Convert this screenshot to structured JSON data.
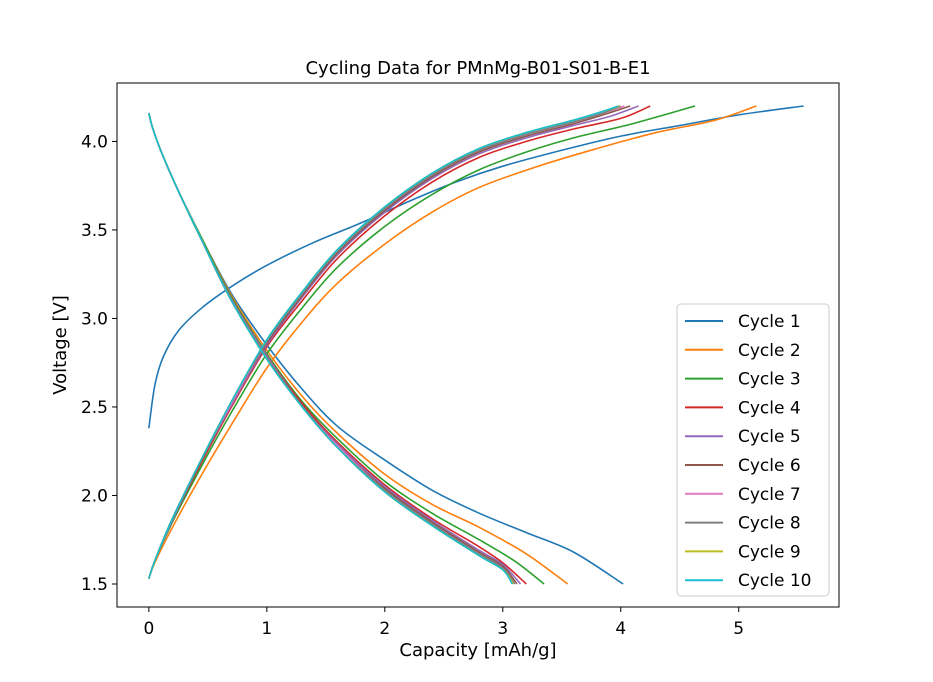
{
  "chart_data": {
    "type": "line",
    "title": "Cycling Data for PMnMg-B01-S01-B-E1",
    "xlabel": "Capacity [mAh/g]",
    "ylabel": "Voltage [V]",
    "xlim": [
      -0.27,
      5.85
    ],
    "ylim": [
      1.37,
      4.33
    ],
    "xticks": [
      0,
      1,
      2,
      3,
      4,
      5
    ],
    "yticks": [
      1.5,
      2.0,
      2.5,
      3.0,
      3.5,
      4.0
    ],
    "xtick_labels": [
      "0",
      "1",
      "2",
      "3",
      "4",
      "5"
    ],
    "ytick_labels": [
      "1.5",
      "2.0",
      "2.5",
      "3.0",
      "3.5",
      "4.0"
    ],
    "grid": false,
    "legend_position": "lower right",
    "series": [
      {
        "name": "Cycle 1",
        "color": "#1f77b4",
        "charge": [
          [
            0.0,
            2.38
          ],
          [
            0.05,
            2.62
          ],
          [
            0.12,
            2.78
          ],
          [
            0.25,
            2.93
          ],
          [
            0.45,
            3.06
          ],
          [
            0.7,
            3.18
          ],
          [
            1.0,
            3.3
          ],
          [
            1.4,
            3.43
          ],
          [
            1.8,
            3.54
          ],
          [
            2.2,
            3.66
          ],
          [
            2.6,
            3.77
          ],
          [
            3.0,
            3.86
          ],
          [
            3.5,
            3.95
          ],
          [
            4.0,
            4.03
          ],
          [
            4.5,
            4.09
          ],
          [
            5.0,
            4.15
          ],
          [
            5.55,
            4.2
          ]
        ],
        "discharge": [
          [
            0.0,
            4.16
          ],
          [
            0.03,
            4.08
          ],
          [
            0.1,
            3.95
          ],
          [
            0.25,
            3.72
          ],
          [
            0.45,
            3.45
          ],
          [
            0.7,
            3.14
          ],
          [
            1.0,
            2.85
          ],
          [
            1.3,
            2.6
          ],
          [
            1.6,
            2.39
          ],
          [
            2.0,
            2.2
          ],
          [
            2.4,
            2.03
          ],
          [
            2.8,
            1.9
          ],
          [
            3.2,
            1.79
          ],
          [
            3.6,
            1.68
          ],
          [
            4.02,
            1.5
          ]
        ]
      },
      {
        "name": "Cycle 2",
        "color": "#ff7f0e",
        "charge": [
          [
            0.0,
            1.53
          ],
          [
            0.05,
            1.62
          ],
          [
            0.2,
            1.82
          ],
          [
            0.45,
            2.12
          ],
          [
            0.7,
            2.4
          ],
          [
            1.0,
            2.72
          ],
          [
            1.3,
            2.98
          ],
          [
            1.6,
            3.2
          ],
          [
            2.0,
            3.42
          ],
          [
            2.4,
            3.6
          ],
          [
            2.8,
            3.74
          ],
          [
            3.3,
            3.86
          ],
          [
            3.8,
            3.96
          ],
          [
            4.3,
            4.05
          ],
          [
            4.8,
            4.12
          ],
          [
            5.15,
            4.2
          ]
        ],
        "discharge": [
          [
            0.0,
            4.16
          ],
          [
            0.03,
            4.08
          ],
          [
            0.1,
            3.95
          ],
          [
            0.25,
            3.72
          ],
          [
            0.45,
            3.45
          ],
          [
            0.7,
            3.13
          ],
          [
            1.0,
            2.82
          ],
          [
            1.3,
            2.56
          ],
          [
            1.6,
            2.35
          ],
          [
            2.0,
            2.12
          ],
          [
            2.4,
            1.95
          ],
          [
            2.8,
            1.82
          ],
          [
            3.2,
            1.67
          ],
          [
            3.55,
            1.5
          ]
        ]
      },
      {
        "name": "Cycle 3",
        "color": "#2ca02c",
        "charge": [
          [
            0.0,
            1.53
          ],
          [
            0.05,
            1.63
          ],
          [
            0.2,
            1.85
          ],
          [
            0.45,
            2.17
          ],
          [
            0.7,
            2.47
          ],
          [
            1.0,
            2.8
          ],
          [
            1.3,
            3.06
          ],
          [
            1.6,
            3.29
          ],
          [
            2.0,
            3.52
          ],
          [
            2.4,
            3.7
          ],
          [
            2.8,
            3.84
          ],
          [
            3.2,
            3.94
          ],
          [
            3.6,
            4.02
          ],
          [
            4.1,
            4.1
          ],
          [
            4.63,
            4.2
          ]
        ],
        "discharge": [
          [
            0.0,
            4.16
          ],
          [
            0.03,
            4.08
          ],
          [
            0.1,
            3.95
          ],
          [
            0.25,
            3.72
          ],
          [
            0.45,
            3.45
          ],
          [
            0.7,
            3.12
          ],
          [
            1.0,
            2.8
          ],
          [
            1.3,
            2.53
          ],
          [
            1.6,
            2.32
          ],
          [
            2.0,
            2.08
          ],
          [
            2.4,
            1.9
          ],
          [
            2.8,
            1.75
          ],
          [
            3.1,
            1.63
          ],
          [
            3.35,
            1.5
          ]
        ]
      },
      {
        "name": "Cycle 4",
        "color": "#d62728",
        "charge": [
          [
            0.0,
            1.53
          ],
          [
            0.05,
            1.63
          ],
          [
            0.2,
            1.86
          ],
          [
            0.45,
            2.19
          ],
          [
            0.7,
            2.5
          ],
          [
            1.0,
            2.84
          ],
          [
            1.3,
            3.1
          ],
          [
            1.6,
            3.34
          ],
          [
            2.0,
            3.58
          ],
          [
            2.4,
            3.77
          ],
          [
            2.8,
            3.91
          ],
          [
            3.2,
            4.0
          ],
          [
            3.6,
            4.07
          ],
          [
            4.0,
            4.13
          ],
          [
            4.25,
            4.2
          ]
        ],
        "discharge": [
          [
            0.0,
            4.16
          ],
          [
            0.03,
            4.08
          ],
          [
            0.1,
            3.95
          ],
          [
            0.25,
            3.72
          ],
          [
            0.45,
            3.44
          ],
          [
            0.7,
            3.11
          ],
          [
            1.0,
            2.79
          ],
          [
            1.3,
            2.52
          ],
          [
            1.6,
            2.3
          ],
          [
            2.0,
            2.06
          ],
          [
            2.4,
            1.87
          ],
          [
            2.8,
            1.71
          ],
          [
            3.0,
            1.62
          ],
          [
            3.2,
            1.5
          ]
        ]
      },
      {
        "name": "Cycle 5",
        "color": "#9467bd",
        "charge": [
          [
            0.0,
            1.53
          ],
          [
            0.05,
            1.63
          ],
          [
            0.2,
            1.86
          ],
          [
            0.45,
            2.2
          ],
          [
            0.7,
            2.51
          ],
          [
            1.0,
            2.85
          ],
          [
            1.3,
            3.12
          ],
          [
            1.6,
            3.36
          ],
          [
            2.0,
            3.6
          ],
          [
            2.4,
            3.79
          ],
          [
            2.8,
            3.93
          ],
          [
            3.2,
            4.02
          ],
          [
            3.6,
            4.09
          ],
          [
            3.9,
            4.14
          ],
          [
            4.15,
            4.2
          ]
        ],
        "discharge": [
          [
            0.0,
            4.16
          ],
          [
            0.03,
            4.08
          ],
          [
            0.1,
            3.95
          ],
          [
            0.25,
            3.72
          ],
          [
            0.45,
            3.44
          ],
          [
            0.7,
            3.11
          ],
          [
            1.0,
            2.79
          ],
          [
            1.3,
            2.51
          ],
          [
            1.6,
            2.29
          ],
          [
            2.0,
            2.05
          ],
          [
            2.4,
            1.86
          ],
          [
            2.8,
            1.69
          ],
          [
            3.0,
            1.61
          ],
          [
            3.15,
            1.5
          ]
        ]
      },
      {
        "name": "Cycle 6",
        "color": "#8c564b",
        "charge": [
          [
            0.0,
            1.53
          ],
          [
            0.05,
            1.63
          ],
          [
            0.2,
            1.87
          ],
          [
            0.45,
            2.2
          ],
          [
            0.7,
            2.52
          ],
          [
            1.0,
            2.86
          ],
          [
            1.3,
            3.13
          ],
          [
            1.6,
            3.37
          ],
          [
            2.0,
            3.61
          ],
          [
            2.4,
            3.8
          ],
          [
            2.8,
            3.94
          ],
          [
            3.2,
            4.03
          ],
          [
            3.6,
            4.1
          ],
          [
            3.85,
            4.15
          ],
          [
            4.08,
            4.2
          ]
        ],
        "discharge": [
          [
            0.0,
            4.16
          ],
          [
            0.03,
            4.08
          ],
          [
            0.1,
            3.95
          ],
          [
            0.25,
            3.72
          ],
          [
            0.45,
            3.44
          ],
          [
            0.7,
            3.1
          ],
          [
            1.0,
            2.78
          ],
          [
            1.3,
            2.51
          ],
          [
            1.6,
            2.28
          ],
          [
            2.0,
            2.04
          ],
          [
            2.4,
            1.85
          ],
          [
            2.8,
            1.68
          ],
          [
            3.0,
            1.6
          ],
          [
            3.12,
            1.5
          ]
        ]
      },
      {
        "name": "Cycle 7",
        "color": "#e377c2",
        "charge": [
          [
            0.0,
            1.53
          ],
          [
            0.05,
            1.63
          ],
          [
            0.2,
            1.87
          ],
          [
            0.45,
            2.21
          ],
          [
            0.7,
            2.52
          ],
          [
            1.0,
            2.87
          ],
          [
            1.3,
            3.14
          ],
          [
            1.6,
            3.38
          ],
          [
            2.0,
            3.62
          ],
          [
            2.4,
            3.81
          ],
          [
            2.8,
            3.95
          ],
          [
            3.2,
            4.04
          ],
          [
            3.6,
            4.11
          ],
          [
            3.85,
            4.16
          ],
          [
            4.03,
            4.2
          ]
        ],
        "discharge": [
          [
            0.0,
            4.16
          ],
          [
            0.03,
            4.08
          ],
          [
            0.1,
            3.95
          ],
          [
            0.25,
            3.72
          ],
          [
            0.45,
            3.44
          ],
          [
            0.7,
            3.1
          ],
          [
            1.0,
            2.78
          ],
          [
            1.3,
            2.5
          ],
          [
            1.6,
            2.28
          ],
          [
            2.0,
            2.03
          ],
          [
            2.4,
            1.84
          ],
          [
            2.8,
            1.67
          ],
          [
            3.0,
            1.59
          ],
          [
            3.1,
            1.5
          ]
        ]
      },
      {
        "name": "Cycle 8",
        "color": "#7f7f7f",
        "charge": [
          [
            0.0,
            1.53
          ],
          [
            0.05,
            1.63
          ],
          [
            0.2,
            1.87
          ],
          [
            0.45,
            2.21
          ],
          [
            0.7,
            2.53
          ],
          [
            1.0,
            2.87
          ],
          [
            1.3,
            3.14
          ],
          [
            1.6,
            3.38
          ],
          [
            2.0,
            3.62
          ],
          [
            2.4,
            3.81
          ],
          [
            2.8,
            3.95
          ],
          [
            3.2,
            4.04
          ],
          [
            3.6,
            4.11
          ],
          [
            3.85,
            4.16
          ],
          [
            4.0,
            4.2
          ]
        ],
        "discharge": [
          [
            0.0,
            4.16
          ],
          [
            0.03,
            4.08
          ],
          [
            0.1,
            3.95
          ],
          [
            0.25,
            3.72
          ],
          [
            0.45,
            3.44
          ],
          [
            0.7,
            3.1
          ],
          [
            1.0,
            2.78
          ],
          [
            1.3,
            2.5
          ],
          [
            1.6,
            2.27
          ],
          [
            2.0,
            2.03
          ],
          [
            2.4,
            1.84
          ],
          [
            2.8,
            1.67
          ],
          [
            3.0,
            1.59
          ],
          [
            3.1,
            1.5
          ]
        ]
      },
      {
        "name": "Cycle 9",
        "color": "#bcbd22",
        "charge": [
          [
            0.0,
            1.53
          ],
          [
            0.05,
            1.63
          ],
          [
            0.2,
            1.87
          ],
          [
            0.45,
            2.21
          ],
          [
            0.7,
            2.53
          ],
          [
            1.0,
            2.88
          ],
          [
            1.3,
            3.15
          ],
          [
            1.6,
            3.39
          ],
          [
            2.0,
            3.63
          ],
          [
            2.4,
            3.82
          ],
          [
            2.8,
            3.96
          ],
          [
            3.2,
            4.05
          ],
          [
            3.6,
            4.12
          ],
          [
            3.85,
            4.17
          ],
          [
            3.99,
            4.2
          ]
        ],
        "discharge": [
          [
            0.0,
            4.16
          ],
          [
            0.03,
            4.08
          ],
          [
            0.1,
            3.95
          ],
          [
            0.25,
            3.72
          ],
          [
            0.45,
            3.44
          ],
          [
            0.7,
            3.1
          ],
          [
            1.0,
            2.77
          ],
          [
            1.3,
            2.5
          ],
          [
            1.6,
            2.27
          ],
          [
            2.0,
            2.02
          ],
          [
            2.4,
            1.83
          ],
          [
            2.8,
            1.66
          ],
          [
            3.0,
            1.58
          ],
          [
            3.09,
            1.5
          ]
        ]
      },
      {
        "name": "Cycle 10",
        "color": "#17becf",
        "charge": [
          [
            0.0,
            1.53
          ],
          [
            0.05,
            1.63
          ],
          [
            0.2,
            1.87
          ],
          [
            0.45,
            2.21
          ],
          [
            0.7,
            2.53
          ],
          [
            1.0,
            2.88
          ],
          [
            1.3,
            3.15
          ],
          [
            1.6,
            3.39
          ],
          [
            2.0,
            3.63
          ],
          [
            2.4,
            3.82
          ],
          [
            2.8,
            3.96
          ],
          [
            3.2,
            4.05
          ],
          [
            3.6,
            4.12
          ],
          [
            3.85,
            4.17
          ],
          [
            3.98,
            4.2
          ]
        ],
        "discharge": [
          [
            0.0,
            4.16
          ],
          [
            0.03,
            4.08
          ],
          [
            0.1,
            3.95
          ],
          [
            0.25,
            3.72
          ],
          [
            0.45,
            3.44
          ],
          [
            0.7,
            3.1
          ],
          [
            1.0,
            2.77
          ],
          [
            1.3,
            2.5
          ],
          [
            1.6,
            2.27
          ],
          [
            2.0,
            2.02
          ],
          [
            2.4,
            1.83
          ],
          [
            2.8,
            1.66
          ],
          [
            3.0,
            1.58
          ],
          [
            3.08,
            1.5
          ]
        ]
      }
    ]
  }
}
